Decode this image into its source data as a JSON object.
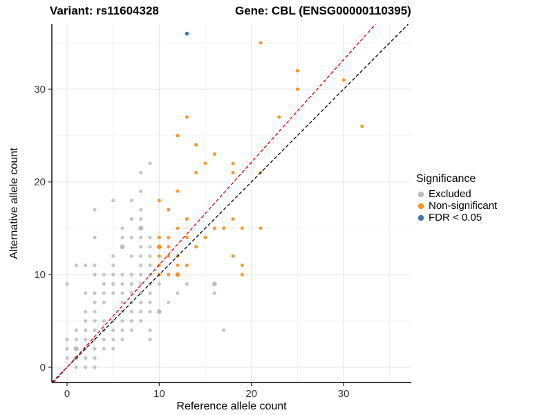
{
  "header": {
    "variant_title": "Variant: rs11604328",
    "gene_title": "Gene: CBL (ENSG00000110395)"
  },
  "legend": {
    "title": "Significance"
  },
  "chart_data": {
    "type": "scatter",
    "title": "Variant: rs11604328  /  Gene: CBL (ENSG00000110395)",
    "xlabel": "Reference allele count",
    "ylabel": "Alternative allele count",
    "xlim": [
      -1.65,
      37.4
    ],
    "ylim": [
      -1.65,
      37.0
    ],
    "x_major_ticks": [
      0,
      10,
      20,
      30
    ],
    "x_minor_gridlines": [
      5,
      15,
      25,
      35
    ],
    "y_major_ticks": [
      0,
      10,
      20,
      30
    ],
    "y_minor_gridlines": [
      5,
      15,
      25,
      35
    ],
    "grid": "on",
    "legend_position": "right",
    "lines": [
      {
        "name": "identity-line",
        "slope": 1.0,
        "intercept": 0,
        "color": "#000000",
        "dash": "dashed"
      },
      {
        "name": "fit-line",
        "slope": 1.106,
        "intercept": 0,
        "color": "#e30000",
        "dash": "dashed"
      }
    ],
    "series": [
      {
        "name": "Excluded",
        "color": "#bcbcbc",
        "radius": 2.6,
        "opacity": 0.85,
        "points": [
          [
            1,
            0
          ],
          [
            2,
            0
          ],
          [
            3,
            0
          ],
          [
            0,
            1
          ],
          [
            1,
            1
          ],
          [
            2,
            1
          ],
          [
            3,
            1
          ],
          [
            0,
            2
          ],
          [
            1,
            2
          ],
          [
            2,
            2
          ],
          [
            3,
            2
          ],
          [
            4,
            2
          ],
          [
            5,
            2
          ],
          [
            0,
            3
          ],
          [
            1,
            3
          ],
          [
            2,
            3
          ],
          [
            3,
            3
          ],
          [
            4,
            3
          ],
          [
            5,
            3
          ],
          [
            6,
            3
          ],
          [
            9,
            3
          ],
          [
            1,
            4
          ],
          [
            2,
            4
          ],
          [
            3,
            4
          ],
          [
            4,
            4
          ],
          [
            5,
            4
          ],
          [
            6,
            4
          ],
          [
            7,
            4
          ],
          [
            9,
            4
          ],
          [
            17,
            4
          ],
          [
            2,
            5
          ],
          [
            3,
            5
          ],
          [
            4,
            5
          ],
          [
            5,
            5
          ],
          [
            6,
            5
          ],
          [
            7,
            5
          ],
          [
            8,
            5
          ],
          [
            2,
            6
          ],
          [
            3,
            6
          ],
          [
            6,
            6
          ],
          [
            7,
            6
          ],
          [
            8,
            6
          ],
          [
            9,
            6
          ],
          [
            10,
            6
          ],
          [
            3,
            7
          ],
          [
            4,
            7
          ],
          [
            6,
            7
          ],
          [
            7,
            7
          ],
          [
            8,
            7
          ],
          [
            9,
            7
          ],
          [
            11,
            7
          ],
          [
            2,
            8
          ],
          [
            3,
            8
          ],
          [
            4,
            8
          ],
          [
            5,
            8
          ],
          [
            6,
            8
          ],
          [
            7,
            8
          ],
          [
            8,
            8
          ],
          [
            9,
            8
          ],
          [
            12,
            8
          ],
          [
            16,
            8
          ],
          [
            0,
            9
          ],
          [
            4,
            9
          ],
          [
            5,
            9
          ],
          [
            6,
            9
          ],
          [
            7,
            9
          ],
          [
            8,
            9
          ],
          [
            9,
            9
          ],
          [
            10,
            9
          ],
          [
            13,
            9
          ],
          [
            16,
            9
          ],
          [
            3,
            10
          ],
          [
            4,
            10
          ],
          [
            5,
            10
          ],
          [
            6,
            10
          ],
          [
            7,
            10
          ],
          [
            8,
            10
          ],
          [
            9,
            10
          ],
          [
            1,
            11
          ],
          [
            2,
            11
          ],
          [
            3,
            11
          ],
          [
            5,
            11
          ],
          [
            8,
            11
          ],
          [
            9,
            11
          ],
          [
            5,
            12
          ],
          [
            7,
            12
          ],
          [
            8,
            12
          ],
          [
            9,
            12
          ],
          [
            6,
            13
          ],
          [
            8,
            13
          ],
          [
            9,
            13
          ],
          [
            3,
            14
          ],
          [
            6,
            14
          ],
          [
            7,
            14
          ],
          [
            8,
            14
          ],
          [
            9,
            14
          ],
          [
            6,
            15
          ],
          [
            8,
            15
          ],
          [
            7,
            16
          ],
          [
            8,
            16
          ],
          [
            3,
            17
          ],
          [
            8,
            17
          ],
          [
            5,
            18
          ],
          [
            7,
            18
          ],
          [
            8,
            19
          ],
          [
            8,
            21
          ],
          [
            9,
            22
          ]
        ],
        "dense_points": [
          [
            1,
            1
          ],
          [
            1,
            2
          ],
          [
            6,
            13
          ],
          [
            8,
            15
          ],
          [
            10,
            6
          ],
          [
            16,
            9
          ]
        ]
      },
      {
        "name": "Non-significant",
        "color": "#f7941e",
        "radius": 2.5,
        "opacity": 0.95,
        "points": [
          [
            10,
            10
          ],
          [
            11,
            10
          ],
          [
            12,
            10
          ],
          [
            19,
            10
          ],
          [
            10,
            11
          ],
          [
            12,
            11
          ],
          [
            13,
            11
          ],
          [
            19,
            11
          ],
          [
            10,
            12
          ],
          [
            11,
            12
          ],
          [
            12,
            12
          ],
          [
            18,
            12
          ],
          [
            10,
            13
          ],
          [
            11,
            13
          ],
          [
            14,
            13
          ],
          [
            10,
            14
          ],
          [
            11,
            14
          ],
          [
            13,
            14
          ],
          [
            15,
            14
          ],
          [
            12,
            15
          ],
          [
            16,
            15
          ],
          [
            17,
            15
          ],
          [
            19,
            15
          ],
          [
            21,
            15
          ],
          [
            13,
            16
          ],
          [
            18,
            16
          ],
          [
            11,
            17
          ],
          [
            10,
            18
          ],
          [
            12,
            19
          ],
          [
            14,
            21
          ],
          [
            18,
            21
          ],
          [
            21,
            21
          ],
          [
            15,
            22
          ],
          [
            18,
            22
          ],
          [
            16,
            23
          ],
          [
            14,
            24
          ],
          [
            12,
            25
          ],
          [
            32,
            26
          ],
          [
            13,
            27
          ],
          [
            23,
            27
          ],
          [
            25,
            30
          ],
          [
            30,
            31
          ],
          [
            25,
            32
          ],
          [
            21,
            35
          ]
        ],
        "dense_points": [
          [
            12,
            10
          ],
          [
            10,
            13
          ]
        ]
      },
      {
        "name": "FDR < 0.05",
        "color": "#3e76b0",
        "radius": 2.8,
        "opacity": 1,
        "points": [
          [
            13,
            36
          ]
        ]
      }
    ]
  }
}
